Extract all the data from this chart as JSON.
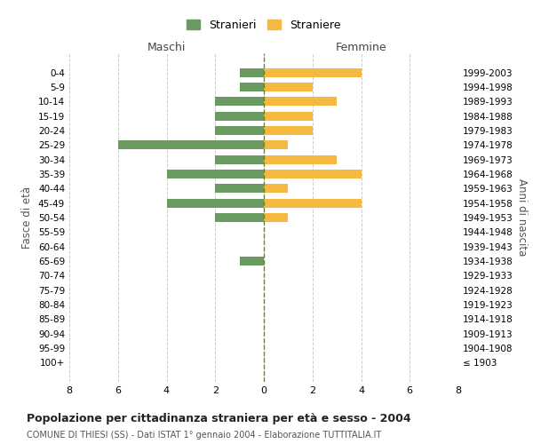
{
  "age_groups": [
    "100+",
    "95-99",
    "90-94",
    "85-89",
    "80-84",
    "75-79",
    "70-74",
    "65-69",
    "60-64",
    "55-59",
    "50-54",
    "45-49",
    "40-44",
    "35-39",
    "30-34",
    "25-29",
    "20-24",
    "15-19",
    "10-14",
    "5-9",
    "0-4"
  ],
  "birth_years": [
    "≤ 1903",
    "1904-1908",
    "1909-1913",
    "1914-1918",
    "1919-1923",
    "1924-1928",
    "1929-1933",
    "1934-1938",
    "1939-1943",
    "1944-1948",
    "1949-1953",
    "1954-1958",
    "1959-1963",
    "1964-1968",
    "1969-1973",
    "1974-1978",
    "1979-1983",
    "1984-1988",
    "1989-1993",
    "1994-1998",
    "1999-2003"
  ],
  "stranieri": [
    0,
    0,
    0,
    0,
    0,
    0,
    0,
    1,
    0,
    0,
    2,
    4,
    2,
    4,
    2,
    6,
    2,
    2,
    2,
    1,
    1
  ],
  "straniere": [
    0,
    0,
    0,
    0,
    0,
    0,
    0,
    0,
    0,
    0,
    1,
    4,
    1,
    4,
    3,
    1,
    2,
    2,
    3,
    2,
    4
  ],
  "color_stranieri": "#6a9a5f",
  "color_straniere": "#f5b942",
  "xlim": 8,
  "title": "Popolazione per cittadinanza straniera per età e sesso - 2004",
  "subtitle": "COMUNE DI THIESI (SS) - Dati ISTAT 1° gennaio 2004 - Elaborazione TUTTITALIA.IT",
  "ylabel_left": "Fasce di età",
  "ylabel_right": "Anni di nascita",
  "label_maschi": "Maschi",
  "label_femmine": "Femmine",
  "legend_stranieri": "Stranieri",
  "legend_straniere": "Straniere",
  "background_color": "#ffffff",
  "grid_color": "#cccccc"
}
